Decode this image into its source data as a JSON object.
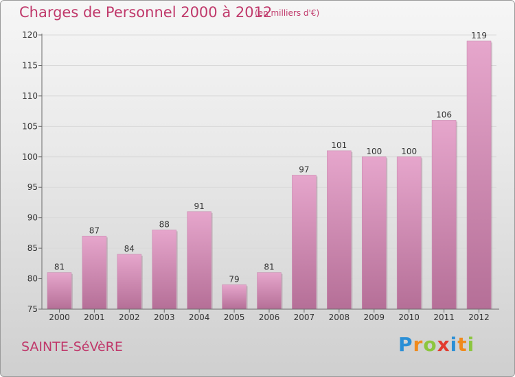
{
  "header": {
    "title": "Charges de Personnel 2000 à 2012",
    "subtitle": "(en milliers d'€)"
  },
  "footer": {
    "commune": "SAINTE-SéVèRE",
    "logo_letters": [
      {
        "ch": "P",
        "color": "#2b8fd6"
      },
      {
        "ch": "r",
        "color": "#f08a1c"
      },
      {
        "ch": "o",
        "color": "#8cc63f"
      },
      {
        "ch": "x",
        "color": "#e23b2e"
      },
      {
        "ch": "i",
        "color": "#2b8fd6"
      },
      {
        "ch": "t",
        "color": "#f08a1c"
      },
      {
        "ch": "i",
        "color": "#8cc63f"
      }
    ]
  },
  "colors": {
    "title": "#c0396b",
    "bar_top": "#e6a6cc",
    "bar_bottom": "#b56f97",
    "grid": "#d9d9d9",
    "axis": "#6a6a6a"
  },
  "chart_data": {
    "type": "bar",
    "categories": [
      "2000",
      "2001",
      "2002",
      "2003",
      "2004",
      "2005",
      "2006",
      "2007",
      "2008",
      "2009",
      "2010",
      "2011",
      "2012"
    ],
    "values": [
      81,
      87,
      84,
      88,
      91,
      79,
      81,
      97,
      101,
      100,
      100,
      106,
      119
    ],
    "ylim": [
      75,
      120
    ],
    "yticks": [
      75,
      80,
      85,
      90,
      95,
      100,
      105,
      110,
      115,
      120
    ],
    "grid": true,
    "xlabel": "",
    "ylabel": ""
  }
}
